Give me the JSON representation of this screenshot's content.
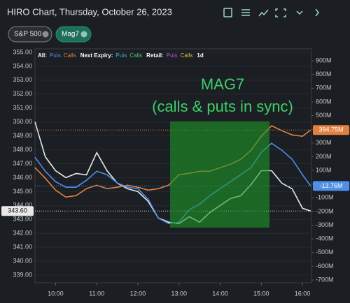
{
  "header": {
    "title": "HIRO Chart, Thursday, October 26, 2023",
    "chips": [
      "S&P 500",
      "Mag7"
    ]
  },
  "chart_data": {
    "type": "line",
    "legend": [
      {
        "label": "All:",
        "items": [
          {
            "name": "Puts",
            "color": "#4f8fe6"
          },
          {
            "name": "Calls",
            "color": "#e3803f"
          }
        ]
      },
      {
        "label": "Next Expiry:",
        "items": [
          {
            "name": "Puts",
            "color": "#45a8d8"
          },
          {
            "name": "Calls",
            "color": "#4cc47a"
          }
        ]
      },
      {
        "label": "Retail:",
        "items": [
          {
            "name": "Puts",
            "color": "#c24fc9"
          },
          {
            "name": "Calls",
            "color": "#d8c23e"
          }
        ]
      },
      {
        "label": "1d",
        "items": []
      }
    ],
    "annotation": [
      "MAG7",
      "(calls & puts in sync)"
    ],
    "x": [
      9.5,
      9.75,
      10,
      10.25,
      10.5,
      10.75,
      11,
      11.25,
      11.5,
      11.75,
      12,
      12.25,
      12.5,
      12.75,
      13,
      13.25,
      13.5,
      13.75,
      14,
      14.25,
      14.5,
      14.75,
      15,
      15.25,
      15.5,
      15.75,
      16,
      16.2
    ],
    "series": [
      {
        "color": "#e8e8e8",
        "axis": "y",
        "values": [
          350.0,
          347.5,
          346.5,
          346.0,
          346.3,
          346.2,
          347.8,
          346.5,
          345.6,
          345.2,
          345.0,
          344.3,
          343.1,
          342.8,
          342.7,
          343.2,
          342.8,
          343.5,
          344.0,
          344.5,
          344.7,
          345.5,
          346.5,
          346.5,
          345.6,
          345.2,
          343.8,
          343.6
        ],
        "value_labels": [
          null,
          null,
          null,
          null,
          null,
          null,
          null,
          null,
          null,
          null,
          null,
          null,
          null,
          null,
          null,
          null,
          null,
          null,
          null,
          null,
          null,
          null,
          null,
          null,
          null,
          null,
          null,
          "343.60"
        ]
      },
      {
        "color": "#e3803f",
        "axis": "y2",
        "values": [
          120,
          43,
          -44,
          -95,
          -84,
          -33,
          -8,
          -33,
          -23,
          -8,
          -23,
          -44,
          -33,
          -8,
          69,
          79,
          94,
          94,
          120,
          145,
          181,
          247,
          349,
          426,
          390,
          359,
          349,
          394.75
        ],
        "value_labels": [
          null,
          null,
          null,
          null,
          null,
          null,
          null,
          null,
          null,
          null,
          null,
          null,
          null,
          null,
          null,
          null,
          null,
          null,
          null,
          null,
          null,
          null,
          null,
          null,
          null,
          null,
          null,
          "394.75M"
        ]
      },
      {
        "color": "#4f8fe6",
        "axis": "y2",
        "values": [
          196,
          94,
          18,
          -23,
          -23,
          28,
          94,
          69,
          8,
          -23,
          -33,
          -110,
          -248,
          -288,
          -278,
          -186,
          -146,
          -84,
          -33,
          18,
          69,
          120,
          232,
          298,
          247,
          181,
          69,
          -13.76
        ],
        "value_labels": [
          null,
          null,
          null,
          null,
          null,
          null,
          null,
          null,
          null,
          null,
          null,
          null,
          null,
          null,
          null,
          null,
          null,
          null,
          null,
          null,
          null,
          null,
          null,
          null,
          null,
          null,
          null,
          "-13.76M"
        ]
      }
    ],
    "xlim": [
      9.5,
      16.22
    ],
    "xticks": [
      {
        "value": 10,
        "label": "10:00"
      },
      {
        "value": 11,
        "label": "11:00"
      },
      {
        "value": 12,
        "label": "12:00"
      },
      {
        "value": 13,
        "label": "13:00"
      },
      {
        "value": 14,
        "label": "14:00"
      },
      {
        "value": 15,
        "label": "15:00"
      },
      {
        "value": 16,
        "label": "16:00"
      }
    ],
    "ylim": [
      338.45,
      355.25
    ],
    "yticks": [
      {
        "value": 339,
        "label": "339.00"
      },
      {
        "value": 340,
        "label": "340.00"
      },
      {
        "value": 341,
        "label": "341.00"
      },
      {
        "value": 342,
        "label": "342.00"
      },
      {
        "value": 343,
        "label": "343.00"
      },
      {
        "value": 344,
        "label": "344.00"
      },
      {
        "value": 345,
        "label": "345.00"
      },
      {
        "value": 346,
        "label": "346.00"
      },
      {
        "value": 347,
        "label": "347.00"
      },
      {
        "value": 348,
        "label": "348.00"
      },
      {
        "value": 349,
        "label": "349.00"
      },
      {
        "value": 350,
        "label": "350.00"
      },
      {
        "value": 351,
        "label": "351.00"
      },
      {
        "value": 352,
        "label": "352.00"
      },
      {
        "value": 353,
        "label": "353.00"
      },
      {
        "value": 354,
        "label": "354.00"
      },
      {
        "value": 355,
        "label": "355.00"
      }
    ],
    "y2lim": [
      -720,
      987
    ],
    "y2ticks": [
      {
        "value": -700,
        "label": "-700M"
      },
      {
        "value": -600,
        "label": "-600M"
      },
      {
        "value": -500,
        "label": "-500M"
      },
      {
        "value": -400,
        "label": "-400M"
      },
      {
        "value": -300,
        "label": "-300M"
      },
      {
        "value": -200,
        "label": "-200M"
      },
      {
        "value": -100,
        "label": "-100M"
      },
      0,
      {
        "value": 100,
        "label": "100M"
      },
      {
        "value": 200,
        "label": "200M"
      },
      {
        "value": 300,
        "label": "300M"
      },
      {
        "value": 400,
        "label": "400M"
      },
      {
        "value": 500,
        "label": "500M"
      },
      {
        "value": 600,
        "label": "600M"
      },
      {
        "value": 700,
        "label": "700M"
      },
      {
        "value": 800,
        "label": "800M"
      },
      {
        "value": 900,
        "label": "900M"
      }
    ],
    "grid": true
  }
}
